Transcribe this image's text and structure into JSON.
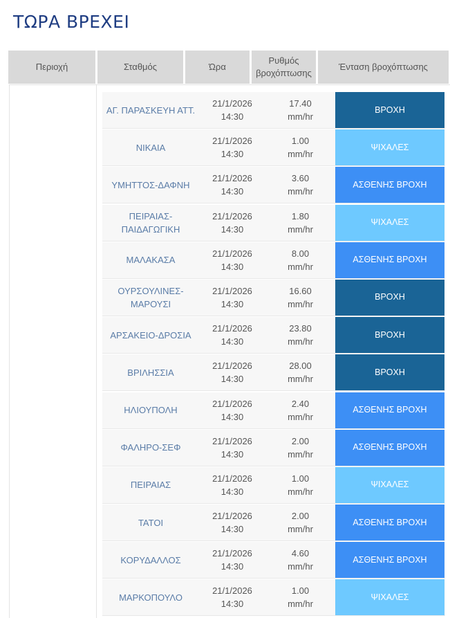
{
  "page": {
    "title": "ΤΩΡΑ ΒΡΕΧΕΙ"
  },
  "table": {
    "headers": {
      "region": "Περιοχή",
      "station": "Σταθμός",
      "time": "Ώρα",
      "rate": "Ρυθμός βροχόπτωσης",
      "intensity": "Ένταση βροχόπτωσης"
    },
    "intensity_colors": {
      "ΒΡΟΧΗ": "#1a6496",
      "ΑΣΘΕΝΗΣ ΒΡΟΧΗ": "#3d8ff5",
      "ΨΙΧΑΛΕΣ": "#6ec9ff"
    },
    "rows": [
      {
        "station": "ΑΓ. ΠΑΡΑΣΚΕΥΗ ΑΤΤ.",
        "date": "21/1/2026",
        "hour": "14:30",
        "rate": "17.40",
        "unit": "mm/hr",
        "intensity": "ΒΡΟΧΗ"
      },
      {
        "station": "ΝΙΚΑΙΑ",
        "date": "21/1/2026",
        "hour": "14:30",
        "rate": "1.00",
        "unit": "mm/hr",
        "intensity": "ΨΙΧΑΛΕΣ"
      },
      {
        "station": "ΥΜΗΤΤΟΣ-ΔΑΦΝΗ",
        "date": "21/1/2026",
        "hour": "14:30",
        "rate": "3.60",
        "unit": "mm/hr",
        "intensity": "ΑΣΘΕΝΗΣ ΒΡΟΧΗ"
      },
      {
        "station": "ΠΕΙΡΑΙΑΣ-ΠΑΙΔΑΓΩΓΙΚΗ",
        "date": "21/1/2026",
        "hour": "14:30",
        "rate": "1.80",
        "unit": "mm/hr",
        "intensity": "ΨΙΧΑΛΕΣ"
      },
      {
        "station": "ΜΑΛΑΚΑΣΑ",
        "date": "21/1/2026",
        "hour": "14:30",
        "rate": "8.00",
        "unit": "mm/hr",
        "intensity": "ΑΣΘΕΝΗΣ ΒΡΟΧΗ"
      },
      {
        "station": "ΟΥΡΣΟΥΛΙΝΕΣ-ΜΑΡΟΥΣΙ",
        "date": "21/1/2026",
        "hour": "14:30",
        "rate": "16.60",
        "unit": "mm/hr",
        "intensity": "ΒΡΟΧΗ"
      },
      {
        "station": "ΑΡΣΑΚΕΙΟ-ΔΡΟΣΙΑ",
        "date": "21/1/2026",
        "hour": "14:30",
        "rate": "23.80",
        "unit": "mm/hr",
        "intensity": "ΒΡΟΧΗ"
      },
      {
        "station": "ΒΡΙΛΗΣΣΙΑ",
        "date": "21/1/2026",
        "hour": "14:30",
        "rate": "28.00",
        "unit": "mm/hr",
        "intensity": "ΒΡΟΧΗ"
      },
      {
        "station": "ΗΛΙΟΥΠΟΛΗ",
        "date": "21/1/2026",
        "hour": "14:30",
        "rate": "2.40",
        "unit": "mm/hr",
        "intensity": "ΑΣΘΕΝΗΣ ΒΡΟΧΗ"
      },
      {
        "station": "ΦΑΛΗΡΟ-ΣΕΦ",
        "date": "21/1/2026",
        "hour": "14:30",
        "rate": "2.00",
        "unit": "mm/hr",
        "intensity": "ΑΣΘΕΝΗΣ ΒΡΟΧΗ"
      },
      {
        "station": "ΠΕΙΡΑΙΑΣ",
        "date": "21/1/2026",
        "hour": "14:30",
        "rate": "1.00",
        "unit": "mm/hr",
        "intensity": "ΨΙΧΑΛΕΣ"
      },
      {
        "station": "ΤΑΤΟΙ",
        "date": "21/1/2026",
        "hour": "14:30",
        "rate": "2.00",
        "unit": "mm/hr",
        "intensity": "ΑΣΘΕΝΗΣ ΒΡΟΧΗ"
      },
      {
        "station": "ΚΟΡΥΔΑΛΛΟΣ",
        "date": "21/1/2026",
        "hour": "14:30",
        "rate": "4.60",
        "unit": "mm/hr",
        "intensity": "ΑΣΘΕΝΗΣ ΒΡΟΧΗ"
      },
      {
        "station": "ΜΑΡΚΟΠΟΥΛΟ",
        "date": "21/1/2026",
        "hour": "14:30",
        "rate": "1.00",
        "unit": "mm/hr",
        "intensity": "ΨΙΧΑΛΕΣ"
      }
    ]
  }
}
